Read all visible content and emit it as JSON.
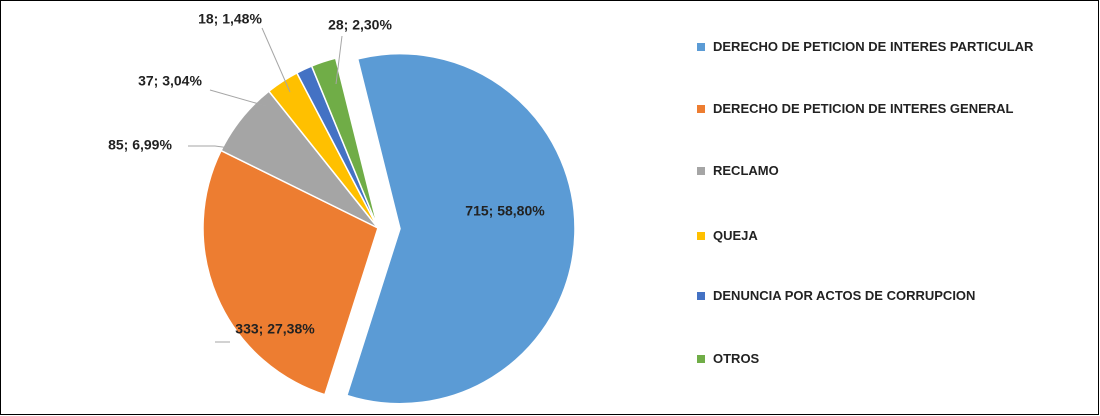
{
  "chart_data": {
    "type": "pie",
    "categories": [
      "DERECHO DE PETICION DE INTERES PARTICULAR",
      "DERECHO DE PETICION DE INTERES GENERAL",
      "RECLAMO",
      "QUEJA",
      "DENUNCIA POR ACTOS DE CORRUPCION",
      "OTROS"
    ],
    "values": [
      715,
      333,
      85,
      37,
      18,
      28
    ],
    "value_labels": [
      "715; 58,80%",
      "333; 27,38%",
      "85; 6,99%",
      "37; 3,04%",
      "18; 1,48%",
      "28; 2,30%"
    ],
    "colors": [
      "#5b9bd5",
      "#ed7d31",
      "#a5a5a5",
      "#ffc000",
      "#4472c4",
      "#70ad47"
    ],
    "legend": "right"
  }
}
